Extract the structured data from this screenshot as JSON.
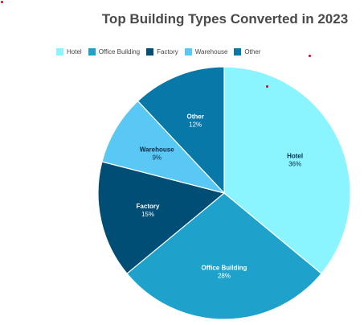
{
  "chart_data": {
    "type": "pie",
    "title": "Top Building Types Converted in 2023",
    "legend_position": "top-left",
    "categories": [
      "Hotel",
      "Office Building",
      "Factory",
      "Warehouse",
      "Other"
    ],
    "values": [
      36,
      28,
      15,
      9,
      12
    ],
    "value_labels": [
      "36%",
      "28%",
      "15%",
      "9%",
      "12%"
    ],
    "colors": [
      "#8af4ff",
      "#1ea2cc",
      "#004d75",
      "#5ac8f4",
      "#0878a8"
    ],
    "label_colors": [
      "#0a2a4a",
      "#ffffff",
      "#ffffff",
      "#0a2a4a",
      "#ffffff"
    ],
    "start_angle_deg": 0,
    "direction": "clockwise"
  }
}
